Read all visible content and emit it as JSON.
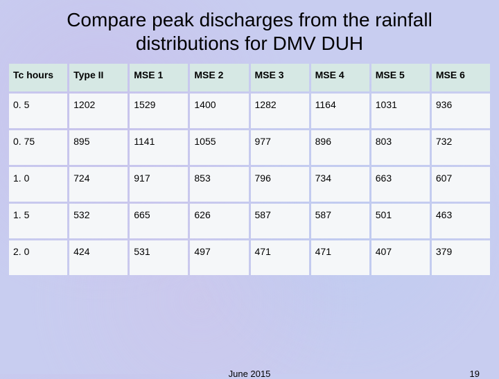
{
  "title": "Compare peak discharges from the rainfall distributions for DMV DUH",
  "table": {
    "type": "table",
    "header_bg": "#d6e8e4",
    "cell_bg": "#f5f7f9",
    "background_color": "#c8cdf0",
    "font_family": "Arial",
    "header_fontsize": 14,
    "cell_fontsize": 14,
    "columns": [
      "Tc hours",
      "Type II",
      "MSE 1",
      "MSE 2",
      "MSE 3",
      "MSE 4",
      "MSE 5",
      "MSE 6"
    ],
    "rows": [
      [
        "0. 5",
        "1202",
        "1529",
        "1400",
        "1282",
        "1164",
        "1031",
        "936"
      ],
      [
        "0. 75",
        "895",
        "1141",
        "1055",
        "977",
        "896",
        "803",
        "732"
      ],
      [
        "1. 0",
        "724",
        "917",
        "853",
        "796",
        "734",
        "663",
        "607"
      ],
      [
        "1. 5",
        "532",
        "665",
        "626",
        "587",
        "587",
        "501",
        "463"
      ],
      [
        "2. 0",
        "424",
        "531",
        "497",
        "471",
        "471",
        "407",
        "379"
      ]
    ]
  },
  "footer": {
    "date": "June 2015",
    "page": "19"
  }
}
